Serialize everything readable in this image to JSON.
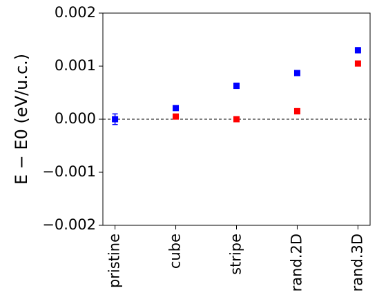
{
  "chart_data": {
    "type": "scatter",
    "ylabel": "E − E0 (eV/u.c.)",
    "categories": [
      "pristine",
      "cube",
      "stripe",
      "rand.2D",
      "rand.3D"
    ],
    "series": [
      {
        "color": "#0000ff",
        "values": [
          0.0,
          0.00021,
          0.00063,
          0.00087,
          0.0013
        ],
        "errors": [
          0.0001,
          3e-05,
          5e-05,
          3e-05,
          5e-05
        ]
      },
      {
        "color": "#ff0000",
        "values": [
          null,
          5e-05,
          0.0,
          0.00015,
          0.00105
        ],
        "errors": [
          null,
          3e-05,
          2e-05,
          5e-05,
          4e-05
        ]
      }
    ],
    "ylim": [
      -0.002,
      0.002
    ],
    "yticks": [
      {
        "value": -0.002,
        "label": "−0.002"
      },
      {
        "value": -0.001,
        "label": "−0.001"
      },
      {
        "value": 0,
        "label": "0.000"
      },
      {
        "value": 0.001,
        "label": "0.001"
      },
      {
        "value": 0.002,
        "label": "0.002"
      }
    ],
    "hline": 0
  }
}
